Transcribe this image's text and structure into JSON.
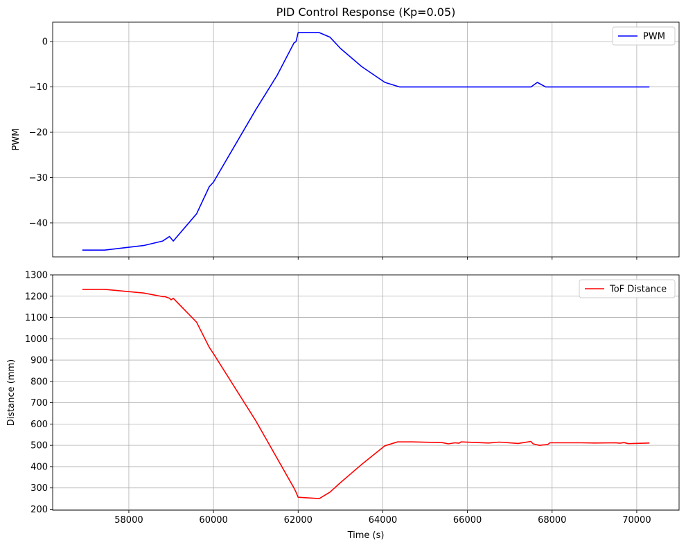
{
  "chart_data": [
    {
      "type": "line",
      "title": "PID Control Response (Kp=0.05)",
      "xlabel": "",
      "ylabel": "PWM",
      "xlim": [
        56200,
        71000
      ],
      "ylim": [
        -47.5,
        4.3
      ],
      "yticks": [
        0,
        -10,
        -20,
        -30,
        -40
      ],
      "ytick_labels": [
        "0",
        "−10",
        "−20",
        "−30",
        "−40"
      ],
      "xticks": [
        58000,
        60000,
        62000,
        64000,
        66000,
        68000,
        70000
      ],
      "show_xtick_labels": false,
      "grid": true,
      "legend_position": "top-right",
      "series": [
        {
          "name": "PWM",
          "color": "#0000ff",
          "x": [
            56900,
            57430,
            58350,
            58800,
            58960,
            59050,
            59600,
            59900,
            60000,
            60500,
            61000,
            61500,
            61900,
            61950,
            62000,
            62500,
            62750,
            63000,
            63500,
            64050,
            64400,
            67500,
            67650,
            67850,
            68200,
            69000,
            70300
          ],
          "y": [
            -46,
            -46,
            -45,
            -44,
            -43,
            -44,
            -38,
            -32,
            -31,
            -23,
            -15,
            -7.5,
            -0.3,
            0,
            2,
            2,
            1,
            -1.5,
            -5.5,
            -9,
            -10,
            -10,
            -9,
            -10,
            -10,
            -10,
            -10
          ]
        }
      ]
    },
    {
      "type": "line",
      "title": "",
      "xlabel": "Time (s)",
      "ylabel": "Distance (mm)",
      "xlim": [
        56200,
        71000
      ],
      "ylim": [
        195,
        1300
      ],
      "yticks": [
        200,
        300,
        400,
        500,
        600,
        700,
        800,
        900,
        1000,
        1100,
        1200,
        1300
      ],
      "ytick_labels": [
        "200",
        "300",
        "400",
        "500",
        "600",
        "700",
        "800",
        "900",
        "1000",
        "1100",
        "1200",
        "1300"
      ],
      "xticks": [
        58000,
        60000,
        62000,
        64000,
        66000,
        68000,
        70000
      ],
      "xtick_labels": [
        "58000",
        "60000",
        "62000",
        "64000",
        "66000",
        "68000",
        "70000"
      ],
      "grid": true,
      "legend_position": "top-right",
      "series": [
        {
          "name": "ToF Distance",
          "color": "#ff0000",
          "x": [
            56900,
            57430,
            58350,
            58800,
            58850,
            58960,
            59000,
            59050,
            59600,
            59900,
            60000,
            61000,
            61900,
            61950,
            62000,
            62500,
            62750,
            63000,
            63500,
            64050,
            64350,
            64400,
            64700,
            65400,
            65550,
            65700,
            65800,
            65850,
            66500,
            66750,
            67200,
            67500,
            67550,
            67700,
            67900,
            67950,
            68700,
            69000,
            69500,
            69600,
            69700,
            69800,
            70300
          ],
          "y": [
            1232,
            1232,
            1215,
            1198,
            1198,
            1190,
            1183,
            1190,
            1078,
            960,
            930,
            615,
            300,
            280,
            256,
            250,
            280,
            325,
            410,
            498,
            516,
            516,
            516,
            513,
            507,
            512,
            510,
            516,
            511,
            515,
            509,
            518,
            507,
            500,
            504,
            512,
            512,
            511,
            512,
            510,
            513,
            508,
            511
          ]
        }
      ]
    }
  ]
}
